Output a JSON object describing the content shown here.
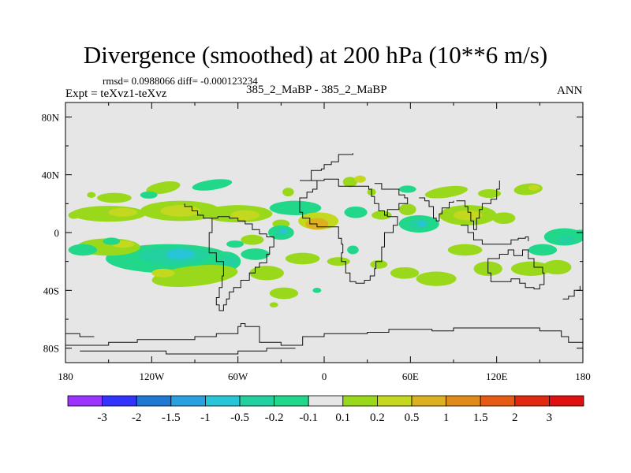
{
  "chart_data": {
    "type": "contour-map",
    "title": "Divergence (smoothed) at 200 hPa (10**6 m/s)",
    "rmsd_line": "rmsd= 0.0988066 diff= -0.000123234",
    "expt_line": "Expt = teXvz1-teXvz",
    "diff_label": "385_2_MaBP - 385_2_MaBP",
    "season": "ANN",
    "rmsd": 0.0988066,
    "diff": -0.000123234,
    "x_ticks": [
      "180",
      "120W",
      "60W",
      "0",
      "60E",
      "120E",
      "180"
    ],
    "x_tick_values": [
      -180,
      -120,
      -60,
      0,
      60,
      120,
      180
    ],
    "y_ticks": [
      "80N",
      "40N",
      "0",
      "40S",
      "80S"
    ],
    "y_tick_values": [
      80,
      40,
      0,
      -40,
      -80
    ],
    "xlim": [
      -180,
      180
    ],
    "ylim": [
      -90,
      90
    ],
    "colorbar_levels": [
      "-3",
      "-2",
      "-1.5",
      "-1",
      "-0.5",
      "-0.2",
      "-0.1",
      "0.1",
      "0.2",
      "0.5",
      "1",
      "1.5",
      "2",
      "3"
    ],
    "colorbar_colors": [
      "#9c33ff",
      "#3333ff",
      "#1f78d4",
      "#2aa0e0",
      "#28c4d8",
      "#22d0a0",
      "#20d78a",
      "#e6e6e6",
      "#9ad81c",
      "#c4d820",
      "#dcb020",
      "#e08a1a",
      "#e65a14",
      "#e02a10",
      "#e01010"
    ],
    "neutral_color": "#e6e6e6",
    "features": [
      {
        "label": "positive",
        "lon": -137,
        "lat": 10,
        "level": "0.2"
      },
      {
        "label": "positive",
        "lon": -95,
        "lat": 13,
        "level": "0.5"
      },
      {
        "label": "positive",
        "lon": -50,
        "lat": 12,
        "level": "0.2"
      },
      {
        "label": "positive",
        "lon": -10,
        "lat": 8,
        "level": "0.5"
      },
      {
        "label": "positive",
        "lon": 95,
        "lat": 10,
        "level": "0.2"
      },
      {
        "label": "positive",
        "lon": 140,
        "lat": 25,
        "level": "0.2"
      },
      {
        "label": "positive",
        "lon": -110,
        "lat": -30,
        "level": "0.2"
      },
      {
        "label": "positive",
        "lon": -40,
        "lat": -42,
        "level": "0.2"
      },
      {
        "label": "positive",
        "lon": 80,
        "lat": -33,
        "level": "0.2"
      },
      {
        "label": "negative",
        "lon": -105,
        "lat": -15,
        "level": "-0.5"
      },
      {
        "label": "negative",
        "lon": -30,
        "lat": 0,
        "level": "-0.5"
      },
      {
        "label": "negative",
        "lon": -75,
        "lat": -18,
        "level": "-0.2"
      },
      {
        "label": "negative",
        "lon": 65,
        "lat": 5,
        "level": "-0.5"
      },
      {
        "label": "negative",
        "lon": 168,
        "lat": -10,
        "level": "-0.2"
      }
    ]
  }
}
